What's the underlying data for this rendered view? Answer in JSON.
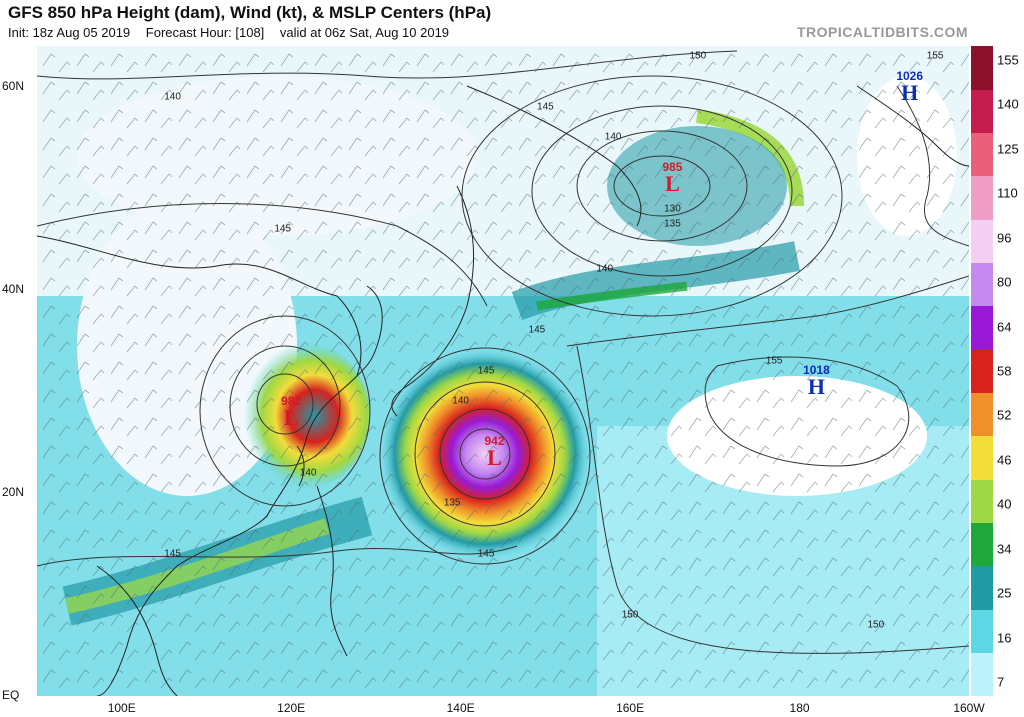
{
  "header": {
    "title": "GFS 850 hPa Height (dam), Wind (kt), & MSLP Centers (hPa)",
    "init": "Init: 18z Aug 05 2019",
    "forecast_hour": "Forecast Hour: [108]",
    "valid": "valid at 06z Sat, Aug 10 2019",
    "brand": "TROPICALTIDBITS.COM"
  },
  "axes": {
    "lat_labels": [
      {
        "text": "60N",
        "lat": 60
      },
      {
        "text": "40N",
        "lat": 40
      },
      {
        "text": "20N",
        "lat": 20
      },
      {
        "text": "EQ",
        "lat": 0
      }
    ],
    "lon_labels": [
      {
        "text": "100E",
        "lon": 100
      },
      {
        "text": "120E",
        "lon": 120
      },
      {
        "text": "140E",
        "lon": 140
      },
      {
        "text": "160E",
        "lon": 160
      },
      {
        "text": "180",
        "lon": 180
      },
      {
        "text": "160W",
        "lon": 200
      }
    ],
    "lon_range": [
      90,
      200
    ],
    "lat_range": [
      0,
      64
    ]
  },
  "colorbar": {
    "labels": [
      "155",
      "140",
      "125",
      "110",
      "96",
      "80",
      "64",
      "58",
      "52",
      "46",
      "40",
      "34",
      "25",
      "16",
      "7"
    ],
    "segments": [
      {
        "min": 7,
        "max": 16,
        "color": "#bff3fb"
      },
      {
        "min": 16,
        "max": 25,
        "color": "#5fd6e3"
      },
      {
        "min": 25,
        "max": 34,
        "color": "#229aa6"
      },
      {
        "min": 34,
        "max": 40,
        "color": "#1ea83a"
      },
      {
        "min": 40,
        "max": 46,
        "color": "#9ed845"
      },
      {
        "min": 46,
        "max": 52,
        "color": "#f2dd3a"
      },
      {
        "min": 52,
        "max": 58,
        "color": "#f0902a"
      },
      {
        "min": 58,
        "max": 64,
        "color": "#d8221e"
      },
      {
        "min": 64,
        "max": 80,
        "color": "#9a19d8"
      },
      {
        "min": 80,
        "max": 96,
        "color": "#c58af0"
      },
      {
        "min": 96,
        "max": 110,
        "color": "#f3d0f3"
      },
      {
        "min": 110,
        "max": 125,
        "color": "#ef9ec6"
      },
      {
        "min": 125,
        "max": 140,
        "color": "#ea5f79"
      },
      {
        "min": 140,
        "max": 155,
        "color": "#c41c4c"
      },
      {
        "min": 155,
        "max": 165,
        "color": "#8c0f2c"
      }
    ]
  },
  "pressure_centers": [
    {
      "type": "low",
      "value": "985",
      "letter": "L",
      "lon": 165,
      "lat": 51
    },
    {
      "type": "low",
      "value": "982",
      "letter": "L",
      "lon": 120,
      "lat": 28
    },
    {
      "type": "low",
      "value": "942",
      "letter": "L",
      "lon": 144,
      "lat": 24
    },
    {
      "type": "high",
      "value": "1026",
      "letter": "H",
      "lon": 193,
      "lat": 60
    },
    {
      "type": "high",
      "value": "1018",
      "letter": "H",
      "lon": 182,
      "lat": 31
    }
  ],
  "height_contour_labels": [
    {
      "text": "150",
      "lon": 168,
      "lat": 63
    },
    {
      "text": "155",
      "lon": 196,
      "lat": 63
    },
    {
      "text": "140",
      "lon": 106,
      "lat": 59
    },
    {
      "text": "145",
      "lon": 150,
      "lat": 58
    },
    {
      "text": "140",
      "lon": 158,
      "lat": 55
    },
    {
      "text": "130",
      "lon": 165,
      "lat": 48
    },
    {
      "text": "135",
      "lon": 165,
      "lat": 46.5
    },
    {
      "text": "145",
      "lon": 119,
      "lat": 46
    },
    {
      "text": "140",
      "lon": 157,
      "lat": 42
    },
    {
      "text": "145",
      "lon": 149,
      "lat": 36
    },
    {
      "text": "145",
      "lon": 143,
      "lat": 32
    },
    {
      "text": "155",
      "lon": 177,
      "lat": 33
    },
    {
      "text": "140",
      "lon": 140,
      "lat": 29
    },
    {
      "text": "135",
      "lon": 139,
      "lat": 19
    },
    {
      "text": "140",
      "lon": 122,
      "lat": 22
    },
    {
      "text": "145",
      "lon": 143,
      "lat": 14
    },
    {
      "text": "145",
      "lon": 106,
      "lat": 14
    },
    {
      "text": "150",
      "lon": 160,
      "lat": 8
    },
    {
      "text": "150",
      "lon": 189,
      "lat": 7
    }
  ]
}
